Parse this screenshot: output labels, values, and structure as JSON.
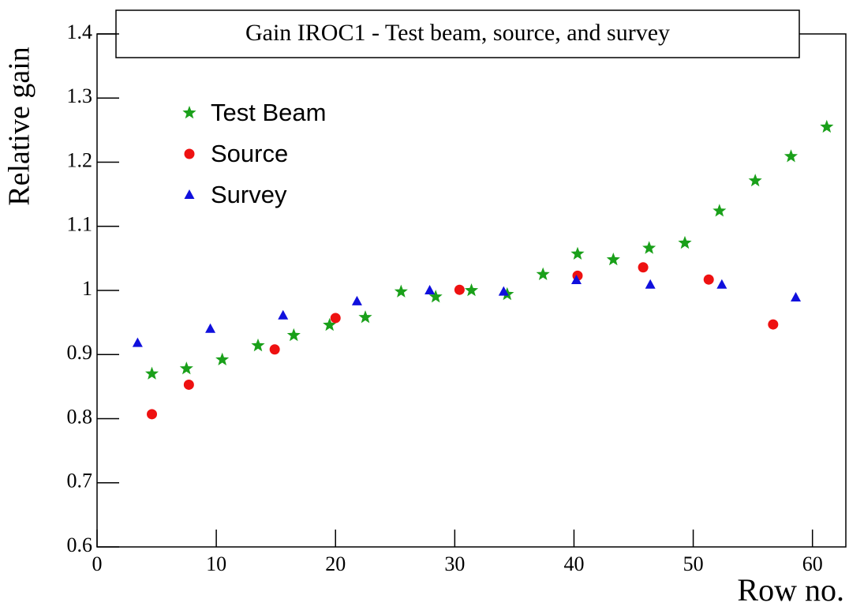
{
  "chart_data": {
    "type": "scatter",
    "title": "Gain IROC1 - Test beam, source, and survey",
    "x_label": "Row no.",
    "y_label": "Relative gain",
    "xlim": [
      0,
      62.8
    ],
    "ylim": [
      0.6,
      1.4
    ],
    "xticks": [
      0,
      10,
      20,
      30,
      40,
      50,
      60
    ],
    "yticks": [
      0.6,
      0.7,
      0.8,
      0.9,
      1,
      1.1,
      1.2,
      1.3,
      1.4
    ],
    "series": [
      {
        "name": "Test Beam",
        "color": "#1aa01a",
        "marker": "star",
        "x": [
          4.6,
          7.5,
          10.5,
          13.5,
          16.5,
          19.5,
          22.5,
          25.5,
          28.4,
          31.4,
          34.4,
          37.4,
          40.3,
          43.3,
          46.3,
          49.3,
          52.2,
          55.2,
          58.2,
          61.2
        ],
        "values": [
          0.87,
          0.878,
          0.892,
          0.914,
          0.93,
          0.946,
          0.958,
          0.998,
          0.99,
          1.0,
          0.994,
          1.025,
          1.057,
          1.048,
          1.066,
          1.074,
          1.124,
          1.171,
          1.209,
          1.255
        ]
      },
      {
        "name": "Source",
        "color": "#ee1111",
        "marker": "circle",
        "x": [
          4.6,
          7.7,
          14.9,
          20.0,
          30.4,
          40.3,
          45.8,
          51.3,
          56.7
        ],
        "values": [
          0.807,
          0.853,
          0.908,
          0.957,
          1.001,
          1.023,
          1.036,
          1.017,
          0.947
        ]
      },
      {
        "name": "Survey",
        "color": "#1010dd",
        "marker": "triangle",
        "x": [
          3.4,
          9.5,
          15.6,
          21.8,
          27.9,
          34.1,
          40.2,
          46.4,
          52.4,
          58.6
        ],
        "values": [
          0.918,
          0.94,
          0.961,
          0.983,
          1.0,
          0.998,
          1.016,
          1.009,
          1.009,
          0.989
        ]
      }
    ]
  }
}
